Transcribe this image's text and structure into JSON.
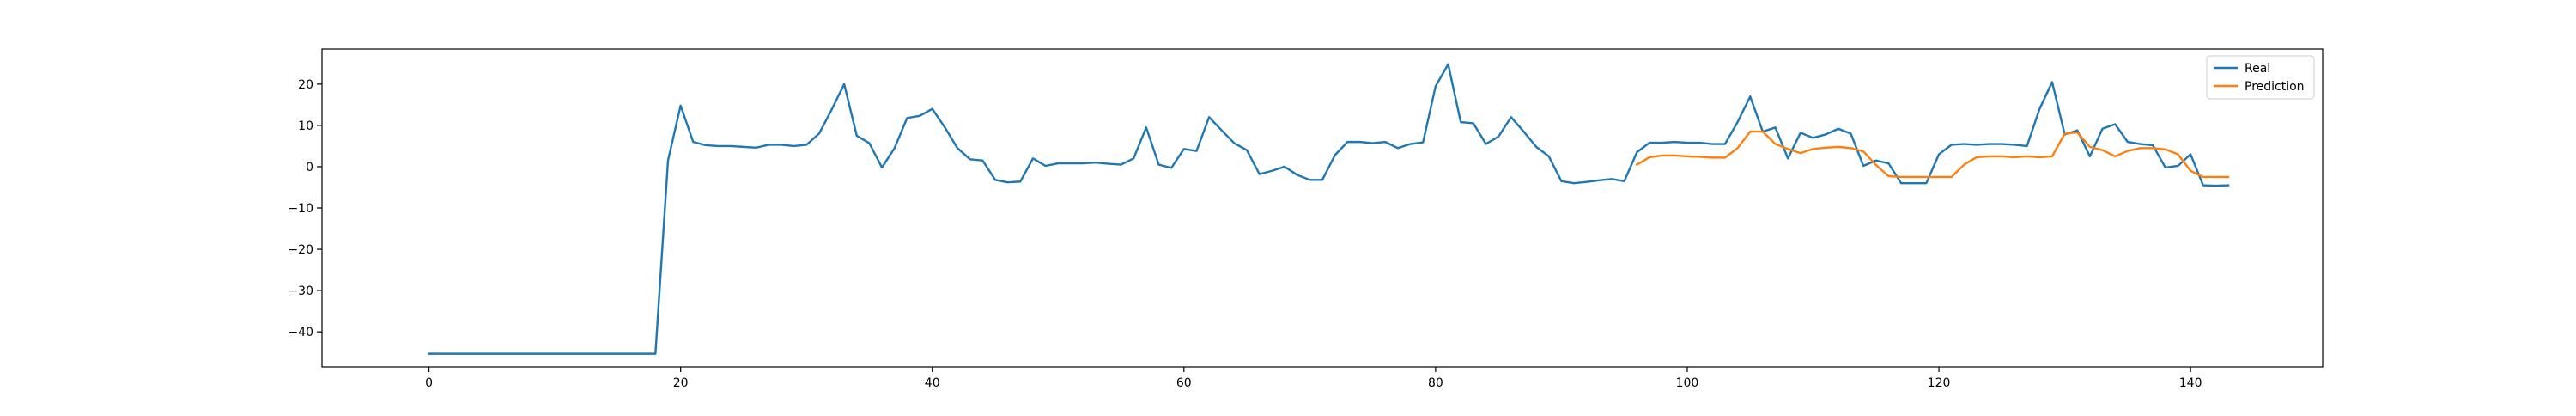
{
  "chart_data": {
    "type": "line",
    "title": "",
    "xlabel": "",
    "ylabel": "",
    "xlim": [
      -8.5,
      150.5
    ],
    "ylim": [
      -48.5,
      28.5
    ],
    "x_ticks": [
      0,
      20,
      40,
      60,
      80,
      100,
      120,
      140
    ],
    "y_ticks": [
      -40,
      -30,
      -20,
      -10,
      0,
      10,
      20
    ],
    "grid": false,
    "legend_position": "top-right",
    "series": [
      {
        "name": "Real",
        "color": "#1f77b4",
        "x_start": 0,
        "values": [
          -45.3,
          -45.3,
          -45.3,
          -45.3,
          -45.3,
          -45.3,
          -45.3,
          -45.3,
          -45.3,
          -45.3,
          -45.3,
          -45.3,
          -45.3,
          -45.3,
          -45.3,
          -45.3,
          -45.3,
          -45.3,
          -45.3,
          1.5,
          14.8,
          6.0,
          5.2,
          5.0,
          5.0,
          4.8,
          4.6,
          5.3,
          5.3,
          5.0,
          5.3,
          8.0,
          13.8,
          20.0,
          7.5,
          5.7,
          -0.2,
          4.5,
          11.8,
          12.3,
          14.0,
          9.5,
          4.5,
          1.8,
          1.5,
          -3.2,
          -3.8,
          -3.6,
          2.0,
          0.2,
          0.8,
          0.8,
          0.8,
          1.0,
          0.7,
          0.5,
          2.0,
          9.5,
          0.5,
          -0.3,
          4.3,
          3.8,
          12.0,
          8.8,
          5.7,
          4.0,
          -1.8,
          -1.0,
          0.0,
          -2.0,
          -3.2,
          -3.2,
          2.8,
          6.0,
          6.0,
          5.7,
          6.0,
          4.5,
          5.5,
          5.9,
          19.5,
          24.8,
          10.8,
          10.5,
          5.5,
          7.3,
          12.0,
          8.5,
          4.8,
          2.5,
          -3.5,
          -4.0,
          -3.7,
          -3.3,
          -3.0,
          -3.5,
          3.5,
          5.8,
          5.8,
          6.0,
          5.8,
          5.8,
          5.5,
          5.5,
          10.8,
          17.0,
          8.5,
          9.5,
          2.0,
          8.2,
          7.0,
          7.8,
          9.2,
          8.0,
          0.2,
          1.5,
          0.8,
          -4.0,
          -4.0,
          -4.0,
          3.0,
          5.3,
          5.5,
          5.3,
          5.5,
          5.5,
          5.3,
          5.0,
          14.0,
          20.5,
          7.8,
          8.8,
          2.5,
          9.2,
          10.3,
          6.0,
          5.5,
          5.2,
          -0.2,
          0.2,
          3.0,
          -4.5,
          -4.6,
          -4.5
        ]
      },
      {
        "name": "Prediction",
        "color": "#ff7f0e",
        "x_start": 96,
        "values": [
          0.5,
          2.3,
          2.7,
          2.7,
          2.5,
          2.4,
          2.2,
          2.2,
          4.5,
          8.5,
          8.5,
          5.5,
          4.3,
          3.3,
          4.3,
          4.6,
          4.8,
          4.5,
          3.7,
          0.4,
          -2.3,
          -2.5,
          -2.5,
          -2.5,
          -2.5,
          -2.5,
          0.5,
          2.3,
          2.5,
          2.5,
          2.3,
          2.5,
          2.3,
          2.5,
          8.0,
          8.3,
          4.8,
          4.0,
          2.5,
          3.8,
          4.5,
          4.5,
          4.2,
          3.0,
          -1.0,
          -2.5,
          -2.5,
          -2.5
        ]
      }
    ]
  }
}
